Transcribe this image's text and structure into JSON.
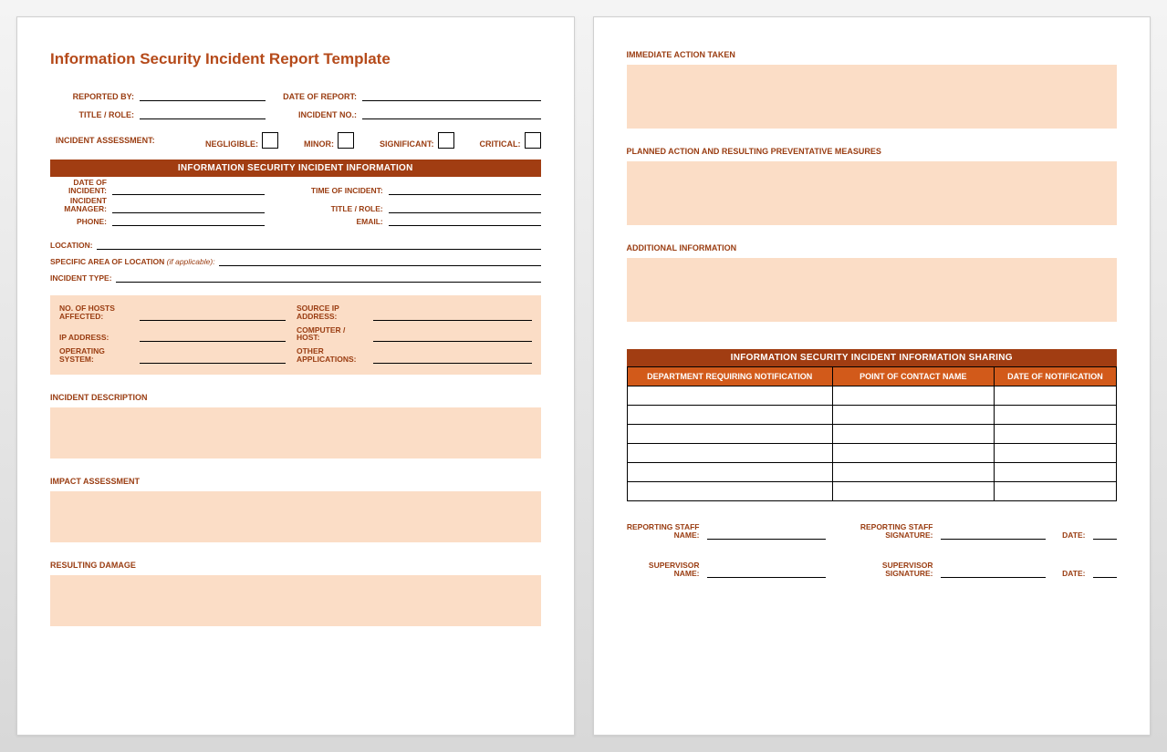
{
  "colors": {
    "brand": "#b54a1a",
    "label": "#9a3d12",
    "bar_dark": "#a13d12",
    "bar_orange": "#d25a1a",
    "peach": "#fbddc6",
    "page_bg": "#ffffff"
  },
  "page1": {
    "title": "Information Security Incident Report Template",
    "top": {
      "reported_by": "REPORTED BY:",
      "date_of_report": "DATE OF REPORT:",
      "title_role": "TITLE / ROLE:",
      "incident_no": "INCIDENT NO.:"
    },
    "assessment": {
      "label": "INCIDENT ASSESSMENT:",
      "negligible": "NEGLIGIBLE:",
      "minor": "MINOR:",
      "significant": "SIGNIFICANT:",
      "critical": "CRITICAL:"
    },
    "bar1": "INFORMATION SECURITY INCIDENT INFORMATION",
    "info": {
      "date_of_incident": "DATE OF INCIDENT:",
      "time_of_incident": "TIME OF INCIDENT:",
      "incident_manager": "INCIDENT MANAGER:",
      "title_role": "TITLE / ROLE:",
      "phone": "PHONE:",
      "email": "EMAIL:",
      "location": "LOCATION:",
      "specific_area": "SPECIFIC AREA OF LOCATION",
      "specific_area_note": " (if applicable):",
      "incident_type": "INCIDENT TYPE:"
    },
    "tech": {
      "hosts": "NO. OF HOSTS AFFECTED:",
      "source_ip": "SOURCE IP ADDRESS:",
      "ip": "IP ADDRESS:",
      "computer": "COMPUTER / HOST:",
      "os": "OPERATING SYSTEM:",
      "other": "OTHER APPLICATIONS:"
    },
    "sections": {
      "desc": "INCIDENT DESCRIPTION",
      "impact": "IMPACT ASSESSMENT",
      "damage": "RESULTING DAMAGE"
    }
  },
  "page2": {
    "sections": {
      "action": "IMMEDIATE ACTION TAKEN",
      "planned": "PLANNED ACTION AND RESULTING PREVENTATIVE MEASURES",
      "additional": "ADDITIONAL INFORMATION"
    },
    "bar": "INFORMATION SECURITY INCIDENT INFORMATION SHARING",
    "table": {
      "col1": "DEPARTMENT REQUIRING NOTIFICATION",
      "col2": "POINT OF CONTACT NAME",
      "col3": "DATE OF NOTIFICATION",
      "row_count": 6
    },
    "sign": {
      "reporting_name": "REPORTING STAFF NAME:",
      "reporting_sig": "REPORTING STAFF SIGNATURE:",
      "supervisor_name": "SUPERVISOR NAME:",
      "supervisor_sig": "SUPERVISOR SIGNATURE:",
      "date": "DATE:"
    }
  }
}
